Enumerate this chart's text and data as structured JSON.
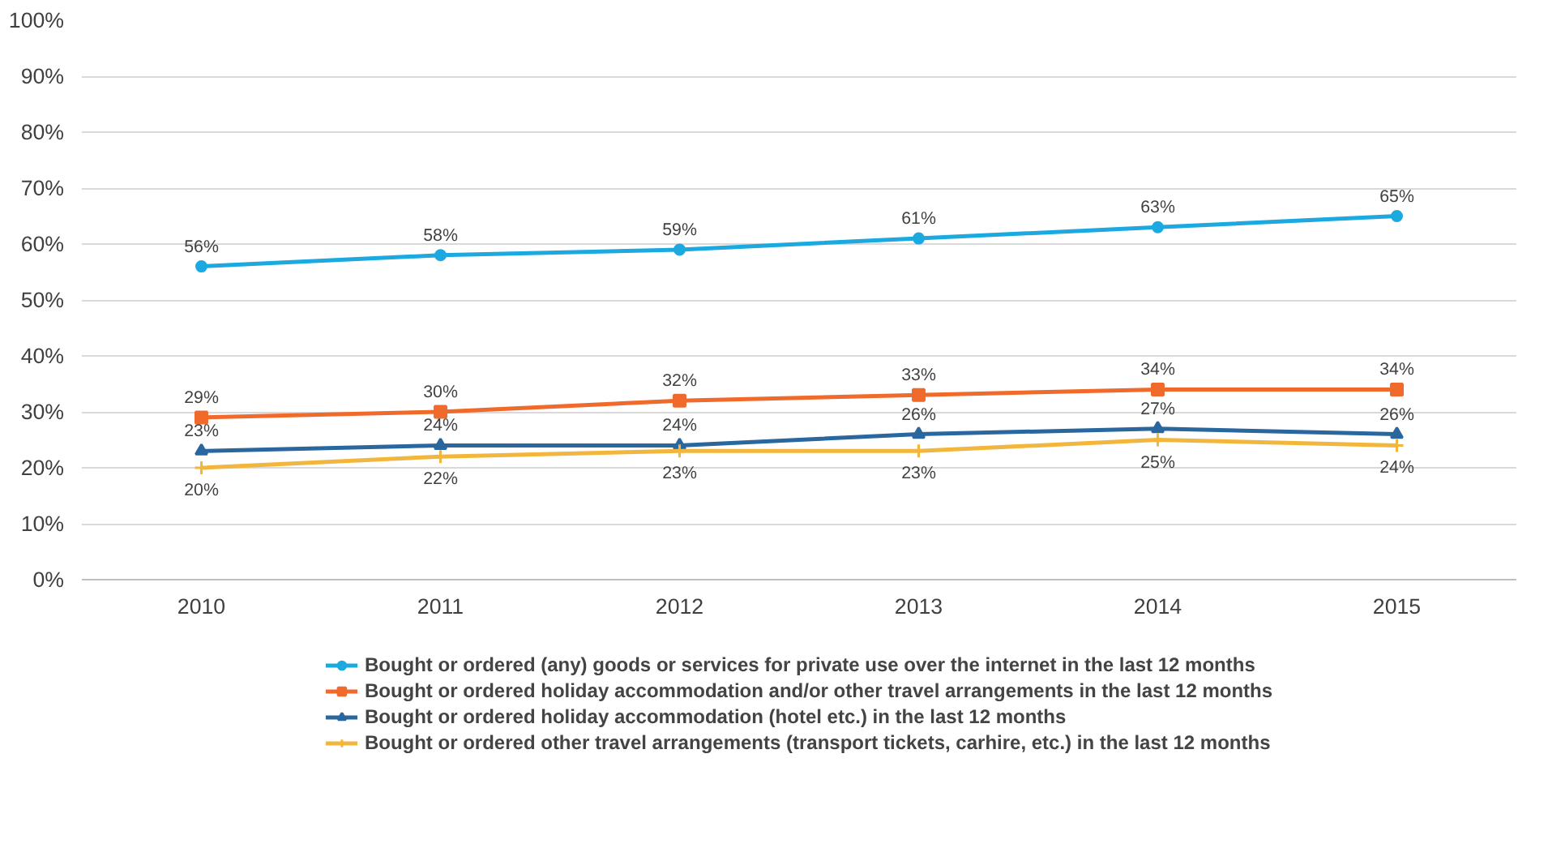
{
  "chart_data": {
    "type": "line",
    "categories": [
      "2010",
      "2011",
      "2012",
      "2013",
      "2014",
      "2015"
    ],
    "ylim": [
      0,
      100
    ],
    "yticks": [
      {
        "value": 0,
        "label": "0%"
      },
      {
        "value": 10,
        "label": "10%"
      },
      {
        "value": 20,
        "label": "20%"
      },
      {
        "value": 30,
        "label": "30%"
      },
      {
        "value": 40,
        "label": "40%"
      },
      {
        "value": 50,
        "label": "50%"
      },
      {
        "value": 60,
        "label": "60%"
      },
      {
        "value": 70,
        "label": "70%"
      },
      {
        "value": 80,
        "label": "80%"
      },
      {
        "value": 90,
        "label": "90%"
      },
      {
        "value": 100,
        "label": "100%"
      }
    ],
    "grid": "y",
    "legend": "bottom",
    "series": [
      {
        "name": "Bought or ordered (any) goods or services for private use over the internet in the last 12 months",
        "color": "#1ba9e0",
        "marker": "circle",
        "values": [
          56,
          58,
          59,
          61,
          63,
          65
        ],
        "value_labels": [
          "56%",
          "58%",
          "59%",
          "61%",
          "63%",
          "65%"
        ]
      },
      {
        "name": "Bought or ordered holiday accommodation and/or other travel arrangements in the last 12 months",
        "color": "#f06a2c",
        "marker": "square",
        "values": [
          29,
          30,
          32,
          33,
          34,
          34
        ],
        "value_labels": [
          "29%",
          "30%",
          "32%",
          "33%",
          "34%",
          "34%"
        ]
      },
      {
        "name": "Bought or ordered holiday accommodation (hotel etc.) in the last 12 months",
        "color": "#2a679f",
        "marker": "triangle",
        "values": [
          23,
          24,
          24,
          26,
          27,
          26
        ],
        "value_labels": [
          "23%",
          "24%",
          "24%",
          "26%",
          "27%",
          "26%"
        ]
      },
      {
        "name": "Bought or ordered other travel arrangements (transport tickets, carhire, etc.) in the last 12 months",
        "color": "#f3b63c",
        "marker": "cross",
        "values": [
          20,
          22,
          23,
          23,
          25,
          24
        ],
        "value_labels": [
          "20%",
          "22%",
          "23%",
          "23%",
          "25%",
          "24%"
        ]
      }
    ]
  }
}
